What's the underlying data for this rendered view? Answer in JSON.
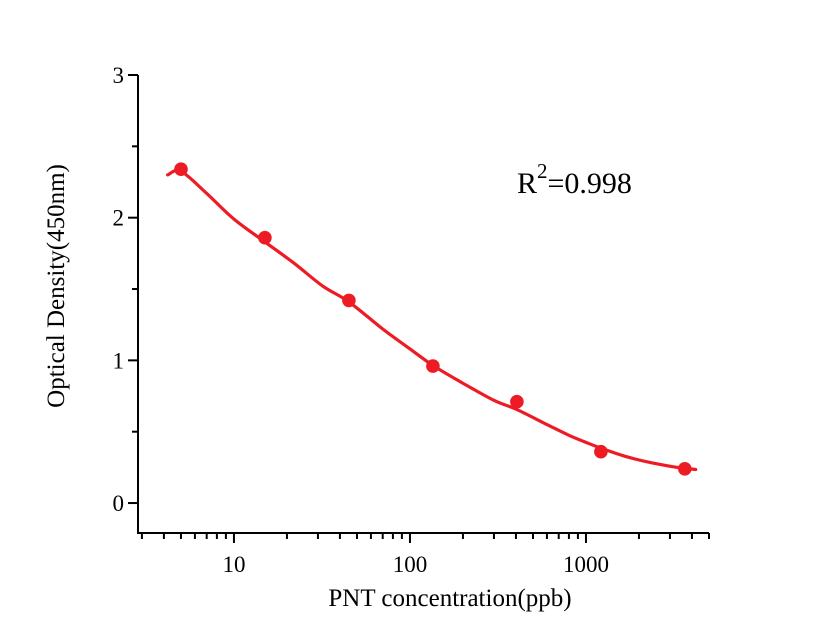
{
  "figure": {
    "background": "#ffffff",
    "axis_color": "#000000",
    "text_color": "#000000",
    "accent_color": "#ed1c24"
  },
  "chart_data": {
    "type": "scatter",
    "title": "",
    "xlabel": "PNT concentration(ppb)",
    "ylabel": "Optical Density(450nm)",
    "x_scale": "log",
    "y_scale": "linear",
    "xlim": [
      2.85,
      5000
    ],
    "ylim": [
      -0.21,
      3
    ],
    "grid": false,
    "legend": null,
    "x_ticks_major": [
      10,
      100,
      1000
    ],
    "x_tick_labels": [
      "10",
      "100",
      "1000"
    ],
    "x_ticks_minor": [
      3,
      4,
      5,
      6,
      7,
      8,
      9,
      20,
      30,
      40,
      50,
      60,
      70,
      80,
      90,
      200,
      300,
      400,
      500,
      600,
      700,
      800,
      900,
      2000,
      3000,
      4000,
      5000
    ],
    "y_ticks_major": [
      0,
      1,
      2,
      3
    ],
    "y_tick_labels": [
      "0",
      "1",
      "2",
      "3"
    ],
    "y_ticks_minor": [
      0.5,
      1.5,
      2.5
    ],
    "annotation": {
      "base": "R",
      "exponent": "2",
      "rest": "=0.998",
      "full": "R²=0.998"
    },
    "series": [
      {
        "name": "standard-points",
        "type": "scatter",
        "color": "#ed1c24",
        "x": [
          5,
          15,
          45,
          135,
          405,
          1215,
          3645
        ],
        "y": [
          2.34,
          1.86,
          1.42,
          0.96,
          0.71,
          0.36,
          0.24
        ]
      },
      {
        "name": "fit-curve",
        "type": "line",
        "color": "#ed1c24",
        "x": [
          4.2,
          5,
          7,
          10,
          15,
          22,
          32,
          45,
          70,
          100,
          135,
          200,
          300,
          405,
          600,
          800,
          1000,
          1215,
          1700,
          2400,
          3200,
          3700,
          4200
        ],
        "y": [
          2.3,
          2.325,
          2.17,
          1.99,
          1.83,
          1.68,
          1.52,
          1.41,
          1.22,
          1.08,
          0.965,
          0.84,
          0.72,
          0.655,
          0.55,
          0.475,
          0.425,
          0.385,
          0.325,
          0.28,
          0.252,
          0.243,
          0.235
        ]
      }
    ]
  }
}
